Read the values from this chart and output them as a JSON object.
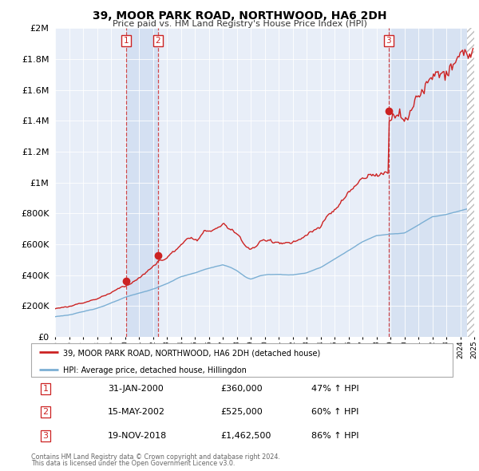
{
  "title": "39, MOOR PARK ROAD, NORTHWOOD, HA6 2DH",
  "subtitle": "Price paid vs. HM Land Registry's House Price Index (HPI)",
  "legend_line1": "39, MOOR PARK ROAD, NORTHWOOD, HA6 2DH (detached house)",
  "legend_line2": "HPI: Average price, detached house, Hillingdon",
  "footer1": "Contains HM Land Registry data © Crown copyright and database right 2024.",
  "footer2": "This data is licensed under the Open Government Licence v3.0.",
  "transactions": [
    {
      "num": "1",
      "date": "31-JAN-2000",
      "price": "£360,000",
      "hpi": "47% ↑ HPI",
      "x": 2000.08
    },
    {
      "num": "2",
      "date": "15-MAY-2002",
      "price": "£525,000",
      "hpi": "60% ↑ HPI",
      "x": 2002.37
    },
    {
      "num": "3",
      "date": "19-NOV-2018",
      "price": "£1,462,500",
      "hpi": "86% ↑ HPI",
      "x": 2018.88
    }
  ],
  "transaction_values": [
    360000,
    525000,
    1462500
  ],
  "hpi_color": "#7bafd4",
  "price_color": "#cc2222",
  "vline_color": "#cc2222",
  "shade_color": "#dde8f5",
  "background_color": "#e8eef8",
  "ylim": [
    0,
    2000000
  ],
  "xlim": [
    1995.0,
    2025.0
  ]
}
